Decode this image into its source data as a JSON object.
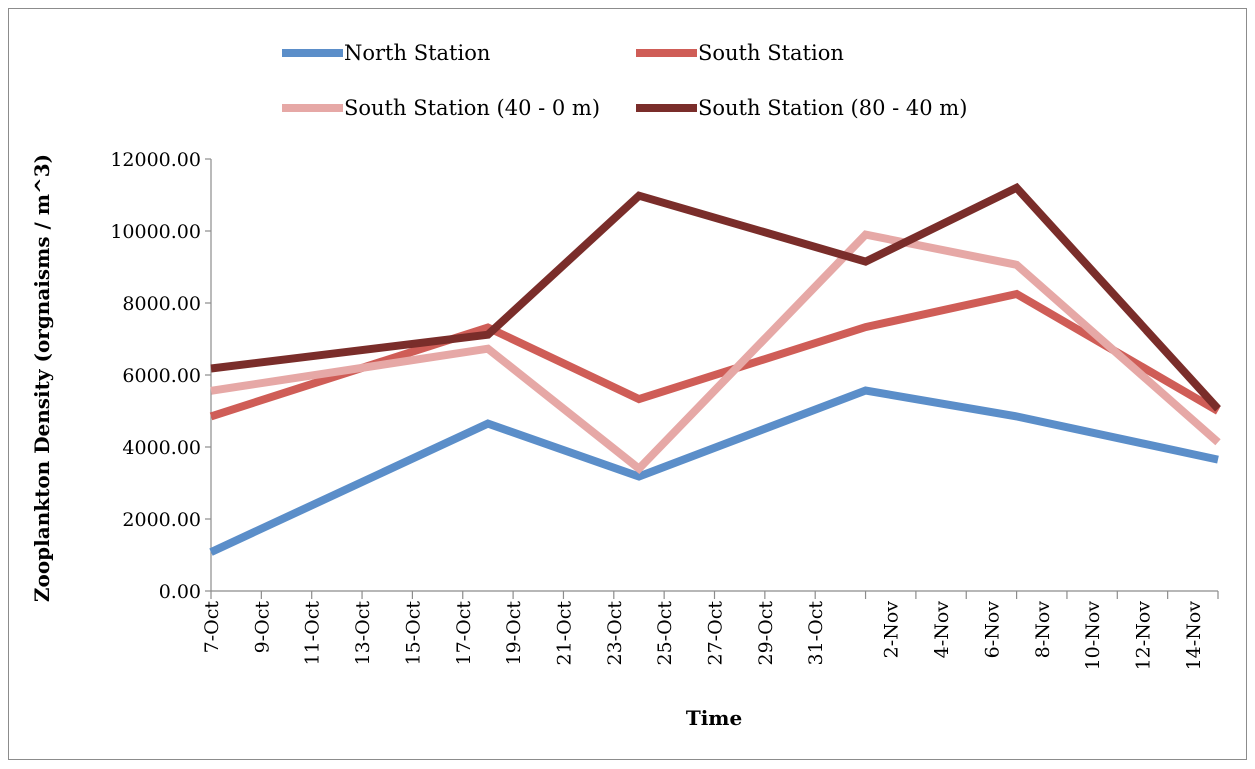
{
  "chart_data": {
    "type": "line",
    "xlabel": "Time",
    "ylabel": "Zooplankton Density (orgnaisms / m^3)",
    "ylim": [
      0,
      12000
    ],
    "y_ticks": [
      "0.00",
      "2000.00",
      "4000.00",
      "6000.00",
      "8000.00",
      "10000.00",
      "12000.00"
    ],
    "y_tick_values": [
      0,
      2000,
      4000,
      6000,
      8000,
      10000,
      12000
    ],
    "x_ticks": [
      "7-Oct",
      "9-Oct",
      "11-Oct",
      "13-Oct",
      "15-Oct",
      "17-Oct",
      "19-Oct",
      "21-Oct",
      "23-Oct",
      "25-Oct",
      "27-Oct",
      "29-Oct",
      "31-Oct",
      "2-Nov",
      "4-Nov",
      "6-Nov",
      "8-Nov",
      "10-Nov",
      "12-Nov",
      "14-Nov"
    ],
    "x": [
      "7-Oct",
      "18-Oct",
      "24-Oct",
      "1-Nov",
      "7-Nov",
      "15-Nov"
    ],
    "grid": false,
    "legend_position": "top",
    "series": [
      {
        "name": "North Station",
        "color": "#5b8ec9",
        "values": [
          1080,
          4650,
          3180,
          5570,
          4850,
          3650
        ]
      },
      {
        "name": "South Station",
        "color": "#cf5d57",
        "values": [
          4850,
          7320,
          5330,
          7330,
          8250,
          5000
        ]
      },
      {
        "name": "South Station (40 - 0 m)",
        "color": "#e6a8a6",
        "values": [
          5560,
          6730,
          3400,
          9900,
          9060,
          4130
        ]
      },
      {
        "name": "South Station (80 - 40 m)",
        "color": "#7a2d2a",
        "values": [
          6180,
          7120,
          10980,
          9150,
          11200,
          5060
        ]
      }
    ]
  }
}
